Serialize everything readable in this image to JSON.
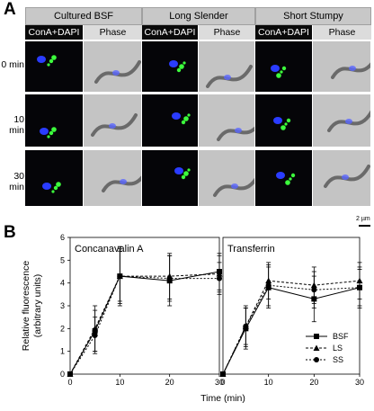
{
  "panel_a": {
    "letter": "A",
    "columns": [
      "Cultured BSF",
      "Long Slender",
      "Short Stumpy"
    ],
    "subheaders": [
      "ConA+DAPI",
      "Phase"
    ],
    "rows": [
      "0 min",
      "10 min",
      "30 min"
    ],
    "scale_bar": "2 µm"
  },
  "panel_b": {
    "letter": "B",
    "ylabel_line1": "Relative fluorescence",
    "ylabel_line2": "(arbitrary units)",
    "xlabel": "Time (min)"
  },
  "chart_data": [
    {
      "type": "line",
      "title": "Concanavalin A",
      "x": [
        0,
        5,
        10,
        20,
        30
      ],
      "xlim": [
        0,
        30
      ],
      "ylim": [
        0,
        6
      ],
      "yticks": [
        0,
        1,
        2,
        3,
        4,
        5,
        6
      ],
      "xticks": [
        0,
        10,
        20,
        30
      ],
      "series": [
        {
          "name": "BSF",
          "values": [
            0,
            1.9,
            4.3,
            4.1,
            4.5
          ],
          "err": [
            0,
            0.9,
            1.3,
            1.1,
            0.8
          ]
        },
        {
          "name": "LS",
          "values": [
            0,
            2.0,
            4.3,
            4.3,
            4.4
          ],
          "err": [
            0,
            1.0,
            1.2,
            1.0,
            0.8
          ]
        },
        {
          "name": "SS",
          "values": [
            0,
            1.7,
            4.3,
            4.2,
            4.2
          ],
          "err": [
            0,
            0.8,
            1.1,
            1.0,
            0.7
          ]
        }
      ]
    },
    {
      "type": "line",
      "title": "Transferrin",
      "x": [
        0,
        5,
        10,
        20,
        30
      ],
      "xlim": [
        0,
        30
      ],
      "ylim": [
        0,
        6
      ],
      "xticks": [
        0,
        10,
        20,
        30
      ],
      "legend": "bottom-right",
      "series": [
        {
          "name": "BSF",
          "values": [
            0,
            2.0,
            3.8,
            3.3,
            3.8
          ],
          "err": [
            0,
            0.9,
            0.9,
            1.0,
            0.9
          ]
        },
        {
          "name": "LS",
          "values": [
            0,
            2.1,
            4.1,
            3.9,
            4.1
          ],
          "err": [
            0,
            0.9,
            0.8,
            0.8,
            0.8
          ]
        },
        {
          "name": "SS",
          "values": [
            0,
            2.1,
            3.9,
            3.7,
            3.8
          ],
          "err": [
            0,
            0.8,
            0.9,
            0.8,
            0.8
          ]
        }
      ]
    }
  ]
}
